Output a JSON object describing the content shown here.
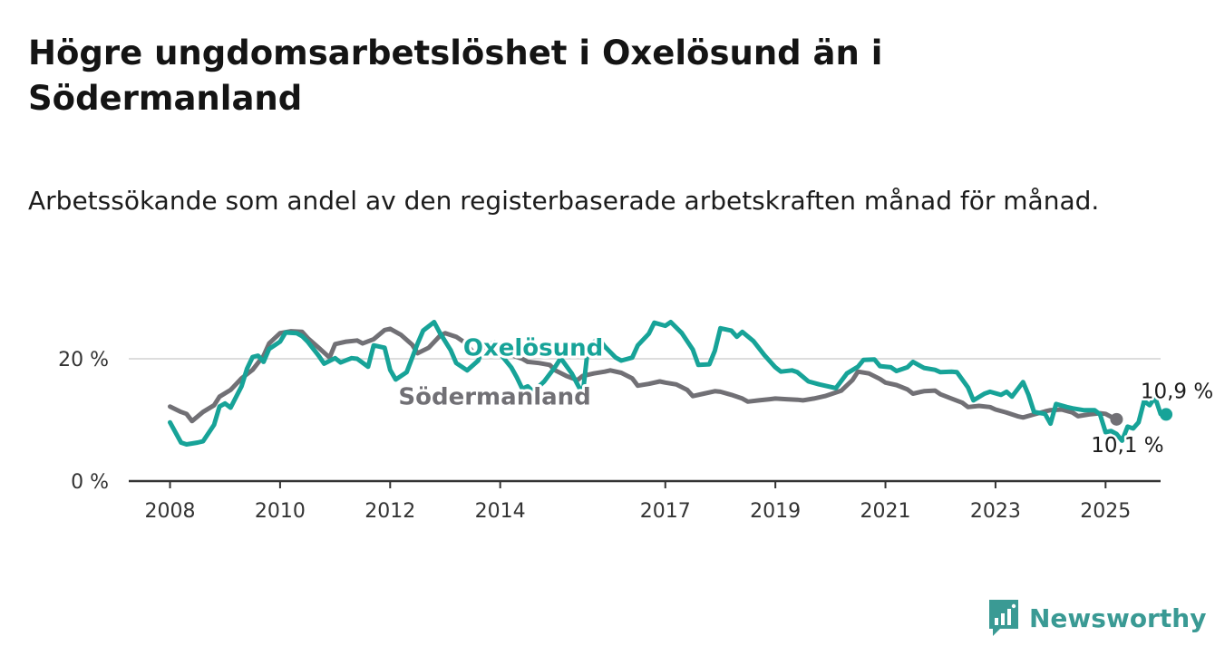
{
  "title": "Högre ungdomsarbetslöshet i Oxelösund än i Södermanland",
  "subtitle": "Arbetssökande som andel av den registerbaserade arbetskraften månad för månad.",
  "brand": {
    "name": "Newsworthy",
    "icon": "newsworthy-logo-icon"
  },
  "colors": {
    "oxelosund": "#17a398",
    "sodermanland": "#717075",
    "grid": "#dddddd",
    "axis": "#333333"
  },
  "chart_data": {
    "type": "line",
    "title": "Högre ungdomsarbetslöshet i Oxelösund än i Södermanland",
    "subtitle": "Arbetssökande som andel av den registerbaserade arbetskraften månad för månad.",
    "xlabel": "",
    "ylabel": "",
    "x_range": [
      2007.25,
      2026.0
    ],
    "ylim": [
      0,
      26
    ],
    "grid": "horizontal",
    "x_ticks": [
      {
        "value": 2008,
        "label": "2008"
      },
      {
        "value": 2010,
        "label": "2010"
      },
      {
        "value": 2012,
        "label": "2012"
      },
      {
        "value": 2014,
        "label": "2014"
      },
      {
        "value": 2017,
        "label": "2017"
      },
      {
        "value": 2019,
        "label": "2019"
      },
      {
        "value": 2021,
        "label": "2021"
      },
      {
        "value": 2023,
        "label": "2023"
      },
      {
        "value": 2025,
        "label": "2025"
      }
    ],
    "y_ticks": [
      {
        "value": 0,
        "label": "0 %"
      },
      {
        "value": 20,
        "label": "20 %"
      }
    ],
    "series": [
      {
        "name": "Södermanland",
        "label_at": [
          2013.9,
          12.5
        ],
        "end_label": "10,1 %",
        "points": [
          [
            2008.0,
            12.2
          ],
          [
            2008.2,
            11.3
          ],
          [
            2008.3,
            11.0
          ],
          [
            2008.4,
            9.8
          ],
          [
            2008.6,
            11.3
          ],
          [
            2008.8,
            12.4
          ],
          [
            2008.9,
            13.8
          ],
          [
            2009.1,
            14.9
          ],
          [
            2009.3,
            16.8
          ],
          [
            2009.5,
            18.2
          ],
          [
            2009.7,
            20.5
          ],
          [
            2009.8,
            22.5
          ],
          [
            2010.0,
            24.2
          ],
          [
            2010.2,
            24.5
          ],
          [
            2010.4,
            24.4
          ],
          [
            2010.5,
            23.4
          ],
          [
            2010.7,
            21.8
          ],
          [
            2010.9,
            20.2
          ],
          [
            2011.0,
            22.4
          ],
          [
            2011.2,
            22.8
          ],
          [
            2011.4,
            23.0
          ],
          [
            2011.5,
            22.5
          ],
          [
            2011.7,
            23.2
          ],
          [
            2011.9,
            24.7
          ],
          [
            2012.0,
            24.9
          ],
          [
            2012.2,
            23.9
          ],
          [
            2012.4,
            22.3
          ],
          [
            2012.5,
            20.9
          ],
          [
            2012.7,
            21.8
          ],
          [
            2012.9,
            23.7
          ],
          [
            2013.0,
            24.2
          ],
          [
            2013.2,
            23.6
          ],
          [
            2013.4,
            22.4
          ],
          [
            2013.5,
            21.1
          ],
          [
            2013.7,
            20.7
          ],
          [
            2013.9,
            21.3
          ],
          [
            2014.0,
            21.2
          ],
          [
            2014.2,
            20.6
          ],
          [
            2014.4,
            20.0
          ],
          [
            2014.5,
            19.5
          ],
          [
            2014.7,
            19.3
          ],
          [
            2014.9,
            19.0
          ],
          [
            2015.0,
            18.1
          ],
          [
            2015.2,
            17.2
          ],
          [
            2015.4,
            16.5
          ],
          [
            2015.5,
            17.2
          ],
          [
            2015.7,
            17.6
          ],
          [
            2015.9,
            17.9
          ],
          [
            2016.0,
            18.1
          ],
          [
            2016.2,
            17.7
          ],
          [
            2016.4,
            16.8
          ],
          [
            2016.5,
            15.6
          ],
          [
            2016.7,
            15.9
          ],
          [
            2016.9,
            16.3
          ],
          [
            2017.0,
            16.1
          ],
          [
            2017.2,
            15.8
          ],
          [
            2017.4,
            14.9
          ],
          [
            2017.5,
            13.9
          ],
          [
            2017.7,
            14.3
          ],
          [
            2017.9,
            14.7
          ],
          [
            2018.0,
            14.6
          ],
          [
            2018.2,
            14.1
          ],
          [
            2018.4,
            13.5
          ],
          [
            2018.5,
            13.0
          ],
          [
            2018.7,
            13.2
          ],
          [
            2018.9,
            13.4
          ],
          [
            2019.0,
            13.5
          ],
          [
            2019.2,
            13.4
          ],
          [
            2019.4,
            13.3
          ],
          [
            2019.5,
            13.2
          ],
          [
            2019.7,
            13.5
          ],
          [
            2019.9,
            13.9
          ],
          [
            2020.0,
            14.2
          ],
          [
            2020.2,
            14.8
          ],
          [
            2020.4,
            16.5
          ],
          [
            2020.5,
            17.9
          ],
          [
            2020.7,
            17.6
          ],
          [
            2020.9,
            16.7
          ],
          [
            2021.0,
            16.1
          ],
          [
            2021.2,
            15.7
          ],
          [
            2021.4,
            15.0
          ],
          [
            2021.5,
            14.3
          ],
          [
            2021.7,
            14.7
          ],
          [
            2021.9,
            14.8
          ],
          [
            2022.0,
            14.2
          ],
          [
            2022.2,
            13.5
          ],
          [
            2022.4,
            12.8
          ],
          [
            2022.5,
            12.1
          ],
          [
            2022.7,
            12.3
          ],
          [
            2022.9,
            12.1
          ],
          [
            2023.0,
            11.7
          ],
          [
            2023.2,
            11.2
          ],
          [
            2023.4,
            10.6
          ],
          [
            2023.5,
            10.4
          ],
          [
            2023.7,
            10.9
          ],
          [
            2023.9,
            11.4
          ],
          [
            2024.0,
            11.6
          ],
          [
            2024.2,
            11.7
          ],
          [
            2024.4,
            11.2
          ],
          [
            2024.5,
            10.6
          ],
          [
            2024.7,
            10.9
          ],
          [
            2024.9,
            11.1
          ],
          [
            2025.0,
            11.0
          ],
          [
            2025.1,
            10.5
          ],
          [
            2025.2,
            10.1
          ]
        ]
      },
      {
        "name": "Oxelösund",
        "label_at": [
          2014.6,
          20.5
        ],
        "end_label": "10,9 %",
        "points": [
          [
            2008.0,
            9.6
          ],
          [
            2008.2,
            6.3
          ],
          [
            2008.3,
            6.0
          ],
          [
            2008.5,
            6.3
          ],
          [
            2008.6,
            6.5
          ],
          [
            2008.8,
            9.2
          ],
          [
            2008.9,
            12.2
          ],
          [
            2009.0,
            12.7
          ],
          [
            2009.1,
            12.0
          ],
          [
            2009.3,
            15.5
          ],
          [
            2009.4,
            18.4
          ],
          [
            2009.5,
            20.3
          ],
          [
            2009.6,
            20.5
          ],
          [
            2009.7,
            19.5
          ],
          [
            2009.8,
            21.6
          ],
          [
            2010.0,
            22.8
          ],
          [
            2010.1,
            24.3
          ],
          [
            2010.3,
            24.2
          ],
          [
            2010.4,
            23.7
          ],
          [
            2010.5,
            22.8
          ],
          [
            2010.7,
            20.5
          ],
          [
            2010.8,
            19.2
          ],
          [
            2011.0,
            20.1
          ],
          [
            2011.1,
            19.4
          ],
          [
            2011.3,
            20.1
          ],
          [
            2011.4,
            20.0
          ],
          [
            2011.6,
            18.7
          ],
          [
            2011.7,
            22.2
          ],
          [
            2011.9,
            21.8
          ],
          [
            2012.0,
            18.2
          ],
          [
            2012.1,
            16.6
          ],
          [
            2012.3,
            17.8
          ],
          [
            2012.5,
            22.5
          ],
          [
            2012.6,
            24.6
          ],
          [
            2012.8,
            26.0
          ],
          [
            2012.9,
            24.3
          ],
          [
            2013.1,
            21.4
          ],
          [
            2013.2,
            19.3
          ],
          [
            2013.4,
            18.1
          ],
          [
            2013.6,
            19.7
          ],
          [
            2013.7,
            22.0
          ],
          [
            2013.9,
            22.7
          ],
          [
            2014.0,
            20.8
          ],
          [
            2014.2,
            18.6
          ],
          [
            2014.3,
            17.0
          ],
          [
            2014.4,
            15.1
          ],
          [
            2014.5,
            15.5
          ],
          [
            2014.6,
            14.6
          ],
          [
            2014.8,
            16.3
          ],
          [
            2015.0,
            18.7
          ],
          [
            2015.1,
            20.1
          ],
          [
            2015.3,
            17.6
          ],
          [
            2015.5,
            14.2
          ],
          [
            2015.6,
            22.3
          ],
          [
            2015.8,
            23.2
          ],
          [
            2015.9,
            22.0
          ],
          [
            2016.1,
            20.2
          ],
          [
            2016.2,
            19.7
          ],
          [
            2016.4,
            20.2
          ],
          [
            2016.5,
            22.2
          ],
          [
            2016.7,
            24.1
          ],
          [
            2016.8,
            25.9
          ],
          [
            2017.0,
            25.4
          ],
          [
            2017.1,
            26.0
          ],
          [
            2017.3,
            24.2
          ],
          [
            2017.5,
            21.5
          ],
          [
            2017.6,
            19.0
          ],
          [
            2017.8,
            19.1
          ],
          [
            2017.9,
            21.3
          ],
          [
            2018.0,
            25.0
          ],
          [
            2018.2,
            24.6
          ],
          [
            2018.3,
            23.6
          ],
          [
            2018.4,
            24.4
          ],
          [
            2018.6,
            22.9
          ],
          [
            2018.8,
            20.6
          ],
          [
            2019.0,
            18.6
          ],
          [
            2019.1,
            17.9
          ],
          [
            2019.3,
            18.1
          ],
          [
            2019.4,
            17.8
          ],
          [
            2019.6,
            16.3
          ],
          [
            2019.8,
            15.8
          ],
          [
            2019.9,
            15.6
          ],
          [
            2020.1,
            15.2
          ],
          [
            2020.3,
            17.6
          ],
          [
            2020.5,
            18.7
          ],
          [
            2020.6,
            19.8
          ],
          [
            2020.8,
            19.9
          ],
          [
            2020.9,
            18.8
          ],
          [
            2021.1,
            18.6
          ],
          [
            2021.2,
            18.0
          ],
          [
            2021.4,
            18.6
          ],
          [
            2021.5,
            19.5
          ],
          [
            2021.7,
            18.5
          ],
          [
            2021.9,
            18.2
          ],
          [
            2022.0,
            17.8
          ],
          [
            2022.2,
            17.9
          ],
          [
            2022.3,
            17.8
          ],
          [
            2022.5,
            15.3
          ],
          [
            2022.6,
            13.2
          ],
          [
            2022.8,
            14.3
          ],
          [
            2022.9,
            14.6
          ],
          [
            2023.1,
            14.1
          ],
          [
            2023.2,
            14.6
          ],
          [
            2023.3,
            13.8
          ],
          [
            2023.5,
            16.2
          ],
          [
            2023.6,
            14.1
          ],
          [
            2023.7,
            11.3
          ],
          [
            2023.9,
            11.0
          ],
          [
            2024.0,
            9.4
          ],
          [
            2024.1,
            12.6
          ],
          [
            2024.3,
            12.1
          ],
          [
            2024.4,
            11.9
          ],
          [
            2024.6,
            11.6
          ],
          [
            2024.8,
            11.6
          ],
          [
            2024.9,
            10.9
          ],
          [
            2025.0,
            8.0
          ],
          [
            2025.1,
            8.2
          ],
          [
            2025.2,
            7.7
          ],
          [
            2025.3,
            6.6
          ],
          [
            2025.4,
            8.9
          ],
          [
            2025.5,
            8.6
          ],
          [
            2025.6,
            9.6
          ],
          [
            2025.7,
            13.1
          ],
          [
            2025.8,
            12.4
          ],
          [
            2025.9,
            13.7
          ],
          [
            2026.0,
            11.0
          ],
          [
            2026.1,
            10.9
          ]
        ]
      }
    ]
  }
}
